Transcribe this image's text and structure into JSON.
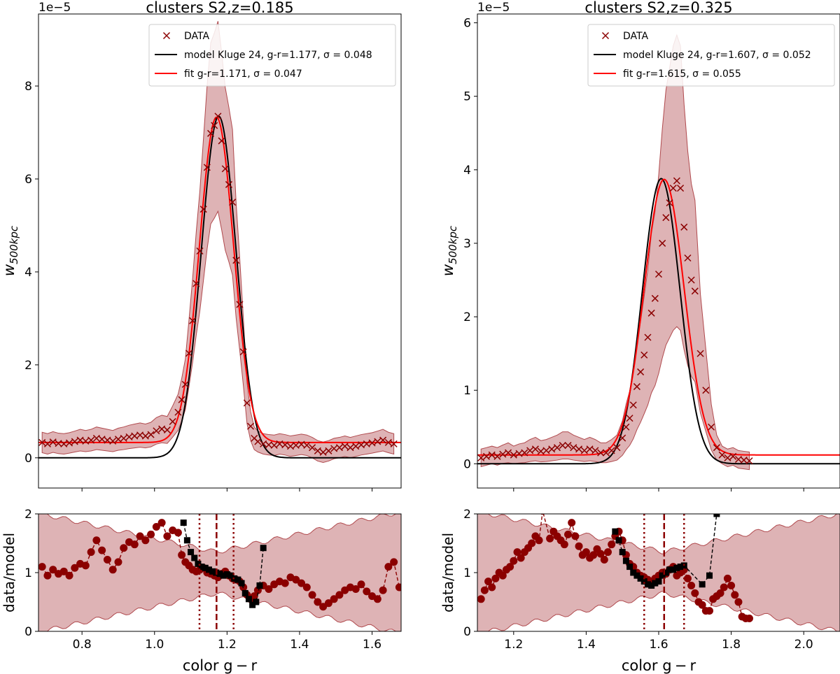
{
  "figure": {
    "xlabel": "color g − r",
    "ylabel_main": "w₅₀₀ₖₚ𝒸",
    "ylabel_main_text": "w",
    "ylabel_main_sub": "500kpc",
    "ylabel_ratio": "data/model",
    "offset_label": "1e−5"
  },
  "chart_data": [
    {
      "type": "line",
      "panel": "left-main",
      "title": "clusters S2,z=0.185",
      "xlabel": "",
      "ylabel": "w_500kpc",
      "y_scale_label": "1e−5",
      "xlim": [
        0.68,
        1.68
      ],
      "ylim": [
        -0.65,
        9.55
      ],
      "yticks": [
        0,
        2,
        4,
        6,
        8
      ],
      "ytick_labels": [
        "0",
        "2",
        "4",
        "6",
        "8"
      ],
      "legend": {
        "position": "top-right",
        "entries": [
          {
            "label": "DATA",
            "color": "#8b0000",
            "marker": "x"
          },
          {
            "label": "model Kluge 24, g-r=1.177, σ = 0.048",
            "color": "#000000"
          },
          {
            "label": "fit g-r=1.171, σ = 0.047",
            "color": "#ff0000"
          }
        ]
      },
      "model": {
        "mu": 1.177,
        "sigma": 0.048,
        "amp": 7.35,
        "base": 0.0
      },
      "fit": {
        "mu": 1.171,
        "sigma": 0.047,
        "amp": 7.0,
        "base": 0.33
      },
      "band_halfwidth_base": 0.22,
      "band_halfwidth_peak_frac": 0.26,
      "data_points": {
        "x": [
          0.69,
          0.705,
          0.72,
          0.735,
          0.75,
          0.765,
          0.78,
          0.795,
          0.81,
          0.825,
          0.84,
          0.855,
          0.87,
          0.885,
          0.9,
          0.915,
          0.93,
          0.945,
          0.96,
          0.975,
          0.99,
          1.005,
          1.02,
          1.035,
          1.05,
          1.065,
          1.075,
          1.085,
          1.095,
          1.105,
          1.115,
          1.125,
          1.135,
          1.145,
          1.155,
          1.165,
          1.175,
          1.185,
          1.195,
          1.205,
          1.215,
          1.225,
          1.235,
          1.245,
          1.255,
          1.265,
          1.275,
          1.285,
          1.3,
          1.315,
          1.33,
          1.345,
          1.36,
          1.375,
          1.39,
          1.405,
          1.42,
          1.435,
          1.45,
          1.465,
          1.48,
          1.495,
          1.51,
          1.525,
          1.54,
          1.555,
          1.57,
          1.585,
          1.6,
          1.615,
          1.63,
          1.645,
          1.66
        ],
        "y": [
          0.33,
          0.3,
          0.34,
          0.31,
          0.3,
          0.32,
          0.35,
          0.38,
          0.36,
          0.38,
          0.42,
          0.4,
          0.38,
          0.36,
          0.4,
          0.42,
          0.45,
          0.47,
          0.49,
          0.47,
          0.5,
          0.58,
          0.62,
          0.6,
          0.78,
          0.98,
          1.25,
          1.58,
          2.25,
          2.95,
          3.75,
          4.45,
          5.35,
          6.25,
          6.98,
          7.15,
          7.35,
          6.82,
          6.22,
          5.88,
          5.5,
          4.25,
          3.3,
          2.28,
          1.18,
          0.68,
          0.42,
          0.35,
          0.3,
          0.28,
          0.27,
          0.3,
          0.28,
          0.25,
          0.27,
          0.29,
          0.27,
          0.22,
          0.15,
          0.12,
          0.15,
          0.2,
          0.22,
          0.25,
          0.22,
          0.25,
          0.28,
          0.3,
          0.32,
          0.35,
          0.38,
          0.33,
          0.3
        ]
      }
    },
    {
      "type": "line",
      "panel": "left-ratio",
      "title": "",
      "xlabel": "color g − r",
      "ylabel": "data/model",
      "xlim": [
        0.68,
        1.68
      ],
      "ylim": [
        0,
        2
      ],
      "xticks": [
        0.8,
        1.0,
        1.2,
        1.4,
        1.6
      ],
      "xtick_labels": [
        "0.8",
        "1.0",
        "1.2",
        "1.4",
        "1.6"
      ],
      "yticks": [
        0,
        1,
        2
      ],
      "ytick_labels": [
        "0",
        "1",
        "2"
      ],
      "vlines": {
        "center": 1.171,
        "inner": [
          1.124,
          1.218
        ]
      },
      "data_over_fit": {
        "x": [
          0.69,
          0.705,
          0.72,
          0.735,
          0.75,
          0.765,
          0.78,
          0.795,
          0.81,
          0.825,
          0.84,
          0.855,
          0.87,
          0.885,
          0.9,
          0.915,
          0.93,
          0.945,
          0.96,
          0.975,
          0.99,
          1.005,
          1.02,
          1.035,
          1.05,
          1.065,
          1.075,
          1.085,
          1.095,
          1.105,
          1.115,
          1.125,
          1.135,
          1.145,
          1.155,
          1.165,
          1.175,
          1.185,
          1.195,
          1.205,
          1.215,
          1.225,
          1.235,
          1.245,
          1.255,
          1.265,
          1.275,
          1.285,
          1.3,
          1.315,
          1.33,
          1.345,
          1.36,
          1.375,
          1.39,
          1.405,
          1.42,
          1.435,
          1.45,
          1.465,
          1.48,
          1.495,
          1.51,
          1.525,
          1.54,
          1.555,
          1.57,
          1.585,
          1.6,
          1.615,
          1.63,
          1.645,
          1.66,
          1.675
        ],
        "y": [
          1.1,
          0.95,
          1.05,
          0.98,
          1.02,
          0.95,
          1.08,
          1.15,
          1.12,
          1.35,
          1.55,
          1.38,
          1.22,
          1.05,
          1.18,
          1.42,
          1.52,
          1.48,
          1.62,
          1.55,
          1.65,
          1.78,
          1.85,
          1.62,
          1.72,
          1.68,
          1.3,
          1.18,
          1.12,
          1.05,
          1.02,
          1.05,
          1.08,
          1.0,
          0.98,
          0.95,
          0.92,
          0.98,
          1.02,
          0.95,
          0.9,
          0.88,
          0.85,
          0.75,
          0.62,
          0.55,
          0.6,
          0.7,
          0.78,
          0.72,
          0.8,
          0.85,
          0.82,
          0.92,
          0.88,
          0.82,
          0.75,
          0.62,
          0.5,
          0.42,
          0.48,
          0.55,
          0.62,
          0.7,
          0.75,
          0.72,
          0.8,
          0.68,
          0.6,
          0.55,
          0.7,
          1.1,
          1.18,
          0.75
        ]
      },
      "data_over_model": {
        "x": [
          1.08,
          1.09,
          1.1,
          1.11,
          1.12,
          1.13,
          1.14,
          1.15,
          1.16,
          1.17,
          1.18,
          1.19,
          1.2,
          1.21,
          1.22,
          1.23,
          1.24,
          1.25,
          1.26,
          1.27,
          1.28,
          1.29,
          1.3
        ],
        "y": [
          1.85,
          1.55,
          1.35,
          1.25,
          1.15,
          1.1,
          1.08,
          1.05,
          1.02,
          1.0,
          0.98,
          0.95,
          0.97,
          0.95,
          0.9,
          0.88,
          0.82,
          0.65,
          0.55,
          0.45,
          0.5,
          0.78,
          1.42
        ]
      }
    },
    {
      "type": "line",
      "panel": "right-main",
      "title": "clusters S2,z=0.325",
      "xlabel": "",
      "ylabel": "w_500kpc",
      "y_scale_label": "1e−5",
      "xlim": [
        1.1,
        2.1
      ],
      "ylim": [
        -0.33,
        6.12
      ],
      "yticks": [
        0,
        1,
        2,
        3,
        4,
        5,
        6
      ],
      "ytick_labels": [
        "0",
        "1",
        "2",
        "3",
        "4",
        "5",
        "6"
      ],
      "legend": {
        "position": "top-right",
        "entries": [
          {
            "label": "DATA",
            "color": "#8b0000",
            "marker": "x"
          },
          {
            "label": "model Kluge 24, g-r=1.607, σ = 0.052",
            "color": "#000000"
          },
          {
            "label": "fit g-r=1.615, σ = 0.055",
            "color": "#ff0000"
          }
        ]
      },
      "model": {
        "mu": 1.607,
        "sigma": 0.052,
        "amp": 3.88,
        "base": 0.0
      },
      "fit": {
        "mu": 1.615,
        "sigma": 0.055,
        "amp": 3.75,
        "base": 0.12
      },
      "band_halfwidth_base": 0.12,
      "band_halfwidth_peak_frac": 0.5,
      "data_points": {
        "x": [
          1.11,
          1.125,
          1.14,
          1.155,
          1.17,
          1.185,
          1.2,
          1.215,
          1.23,
          1.245,
          1.26,
          1.275,
          1.29,
          1.305,
          1.32,
          1.335,
          1.35,
          1.365,
          1.38,
          1.395,
          1.41,
          1.425,
          1.44,
          1.455,
          1.47,
          1.485,
          1.5,
          1.51,
          1.52,
          1.53,
          1.54,
          1.55,
          1.56,
          1.57,
          1.58,
          1.59,
          1.6,
          1.61,
          1.62,
          1.63,
          1.64,
          1.65,
          1.66,
          1.67,
          1.68,
          1.69,
          1.7,
          1.715,
          1.73,
          1.745,
          1.76,
          1.775,
          1.79,
          1.805,
          1.82,
          1.835,
          1.85
        ],
        "y": [
          0.08,
          0.1,
          0.12,
          0.1,
          0.13,
          0.15,
          0.12,
          0.14,
          0.15,
          0.18,
          0.2,
          0.17,
          0.18,
          0.2,
          0.22,
          0.25,
          0.25,
          0.22,
          0.2,
          0.18,
          0.2,
          0.18,
          0.15,
          0.15,
          0.18,
          0.22,
          0.35,
          0.5,
          0.62,
          0.8,
          1.05,
          1.25,
          1.48,
          1.72,
          2.05,
          2.25,
          2.58,
          3.0,
          3.35,
          3.55,
          3.75,
          3.85,
          3.75,
          3.22,
          2.8,
          2.5,
          2.35,
          1.5,
          1.0,
          0.5,
          0.22,
          0.12,
          0.08,
          0.1,
          0.06,
          0.05,
          0.04
        ]
      }
    },
    {
      "type": "line",
      "panel": "right-ratio",
      "title": "",
      "xlabel": "color g − r",
      "ylabel": "data/model",
      "xlim": [
        1.1,
        2.1
      ],
      "ylim": [
        0,
        2
      ],
      "xticks": [
        1.2,
        1.4,
        1.6,
        1.8,
        2.0
      ],
      "xtick_labels": [
        "1.2",
        "1.4",
        "1.6",
        "1.8",
        "2.0"
      ],
      "yticks": [
        0,
        1,
        2
      ],
      "ytick_labels": [
        "0",
        "1",
        "2"
      ],
      "vlines": {
        "center": 1.615,
        "inner": [
          1.56,
          1.67
        ]
      },
      "data_over_fit": {
        "x": [
          1.11,
          1.12,
          1.13,
          1.14,
          1.15,
          1.16,
          1.17,
          1.18,
          1.19,
          1.2,
          1.21,
          1.22,
          1.23,
          1.24,
          1.25,
          1.26,
          1.27,
          1.28,
          1.3,
          1.31,
          1.32,
          1.33,
          1.34,
          1.35,
          1.36,
          1.37,
          1.38,
          1.39,
          1.4,
          1.41,
          1.42,
          1.43,
          1.44,
          1.45,
          1.46,
          1.47,
          1.48,
          1.49,
          1.5,
          1.51,
          1.52,
          1.53,
          1.54,
          1.55,
          1.56,
          1.57,
          1.58,
          1.59,
          1.6,
          1.61,
          1.62,
          1.63,
          1.64,
          1.65,
          1.66,
          1.67,
          1.68,
          1.69,
          1.7,
          1.71,
          1.72,
          1.73,
          1.74,
          1.75,
          1.76,
          1.77,
          1.78,
          1.79,
          1.8,
          1.81,
          1.82,
          1.83,
          1.84,
          1.85
        ],
        "y": [
          0.55,
          0.7,
          0.85,
          0.75,
          0.9,
          1.0,
          0.95,
          1.05,
          1.1,
          1.2,
          1.35,
          1.25,
          1.35,
          1.42,
          1.5,
          1.62,
          1.55,
          2.05,
          1.58,
          1.7,
          1.62,
          1.55,
          1.48,
          1.65,
          1.85,
          1.62,
          1.45,
          1.3,
          1.35,
          1.25,
          1.3,
          1.4,
          1.32,
          1.22,
          1.35,
          1.48,
          1.62,
          1.7,
          1.55,
          1.3,
          1.15,
          1.1,
          1.0,
          0.95,
          0.92,
          0.88,
          0.85,
          0.9,
          0.95,
          1.0,
          0.98,
          1.05,
          1.1,
          0.95,
          1.0,
          1.05,
          0.9,
          0.78,
          0.65,
          0.5,
          0.45,
          0.35,
          0.35,
          0.55,
          0.6,
          0.65,
          0.75,
          0.9,
          0.78,
          0.62,
          0.5,
          0.25,
          0.22,
          0.22
        ]
      },
      "data_over_model": {
        "x": [
          1.48,
          1.49,
          1.5,
          1.51,
          1.52,
          1.53,
          1.54,
          1.55,
          1.56,
          1.57,
          1.58,
          1.59,
          1.6,
          1.61,
          1.62,
          1.63,
          1.64,
          1.65,
          1.66,
          1.67,
          1.72,
          1.74,
          1.76
        ],
        "y": [
          1.7,
          1.55,
          1.35,
          1.2,
          1.1,
          1.0,
          0.95,
          0.9,
          0.85,
          0.8,
          0.78,
          0.82,
          0.85,
          0.95,
          1.0,
          1.05,
          1.05,
          1.08,
          1.1,
          1.12,
          0.8,
          0.95,
          2.0
        ]
      }
    }
  ]
}
